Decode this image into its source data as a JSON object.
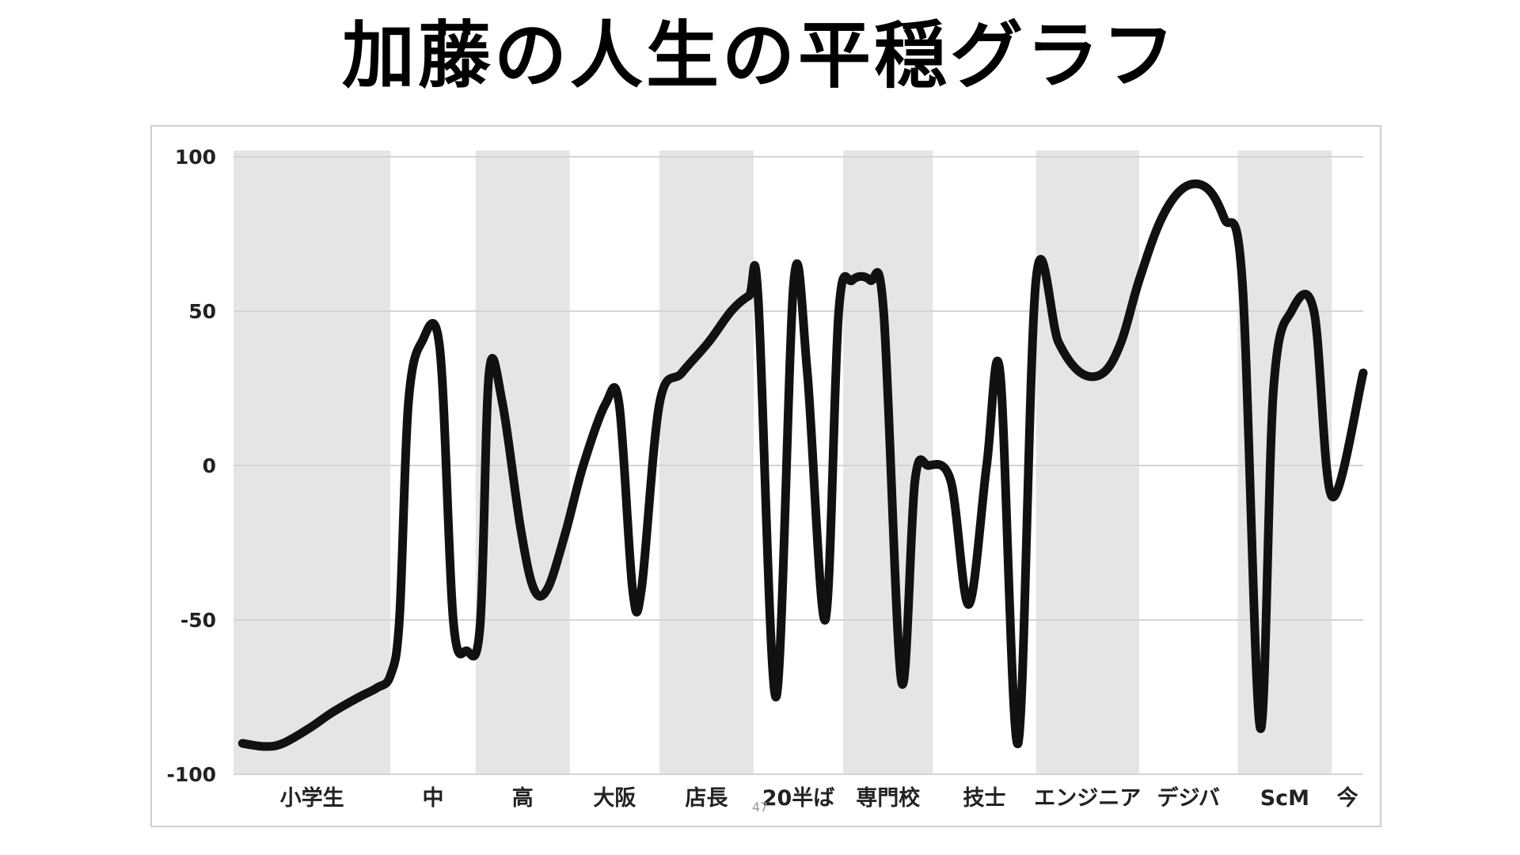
{
  "slide": {
    "title": "加藤の人生の平穏グラフ",
    "page_number": "47"
  },
  "chart_data": {
    "type": "line",
    "title": "",
    "xlabel": "",
    "ylabel": "",
    "ylim": [
      -100,
      100
    ],
    "yticks": [
      100,
      50,
      0,
      -50,
      -100
    ],
    "grid": true,
    "legend": "none",
    "line_color": "#111111",
    "band_color": "#e5e5e5",
    "gridline_color": "#d4d4d4",
    "categories": [
      {
        "label": "小学生",
        "shaded": true
      },
      {
        "label": "中",
        "shaded": false
      },
      {
        "label": "高",
        "shaded": true
      },
      {
        "label": "大阪",
        "shaded": false
      },
      {
        "label": "店長",
        "shaded": true
      },
      {
        "label": "20半ば",
        "shaded": false
      },
      {
        "label": "専門校",
        "shaded": true
      },
      {
        "label": "技士",
        "shaded": false
      },
      {
        "label": "エンジニア",
        "shaded": true
      },
      {
        "label": "デジバ",
        "shaded": false
      },
      {
        "label": "ScM",
        "shaded": true
      },
      {
        "label": "今",
        "shaded": false
      }
    ],
    "category_bounds": [
      0,
      1.75,
      2.7,
      3.75,
      4.75,
      5.8,
      6.8,
      7.8,
      8.95,
      10.1,
      11.2,
      12.25,
      12.6
    ],
    "series": [
      {
        "x": [
          0.1,
          0.35,
          0.55,
          0.85,
          1.1,
          1.4,
          1.6,
          1.75,
          1.85,
          1.95,
          2.1,
          2.3,
          2.45,
          2.6,
          2.75,
          2.85,
          3.0,
          3.2,
          3.35,
          3.5,
          3.7,
          3.9,
          4.15,
          4.3,
          4.45,
          4.55,
          4.75,
          5.0,
          5.3,
          5.55,
          5.75,
          5.85,
          6.05,
          6.25,
          6.4,
          6.6,
          6.75,
          6.9,
          7.1,
          7.25,
          7.45,
          7.6,
          7.75,
          8.0,
          8.2,
          8.4,
          8.55,
          8.75,
          8.95,
          9.2,
          9.45,
          9.7,
          9.9,
          10.1,
          10.35,
          10.6,
          10.85,
          11.05,
          11.25,
          11.45,
          11.6,
          11.8,
          12.05,
          12.25,
          12.6
        ],
        "y": [
          -90,
          -91,
          -90,
          -85,
          -80,
          -75,
          -72,
          -68,
          -50,
          20,
          40,
          38,
          -50,
          -60,
          -52,
          30,
          20,
          -20,
          -40,
          -40,
          -22,
          0,
          20,
          20,
          -40,
          -40,
          20,
          30,
          40,
          50,
          55,
          55,
          -75,
          60,
          30,
          -50,
          50,
          60,
          60,
          50,
          -70,
          -5,
          0,
          -5,
          -45,
          0,
          30,
          -90,
          60,
          40,
          30,
          30,
          40,
          60,
          80,
          90,
          90,
          80,
          60,
          -85,
          25,
          50,
          50,
          -10,
          30
        ]
      }
    ]
  }
}
